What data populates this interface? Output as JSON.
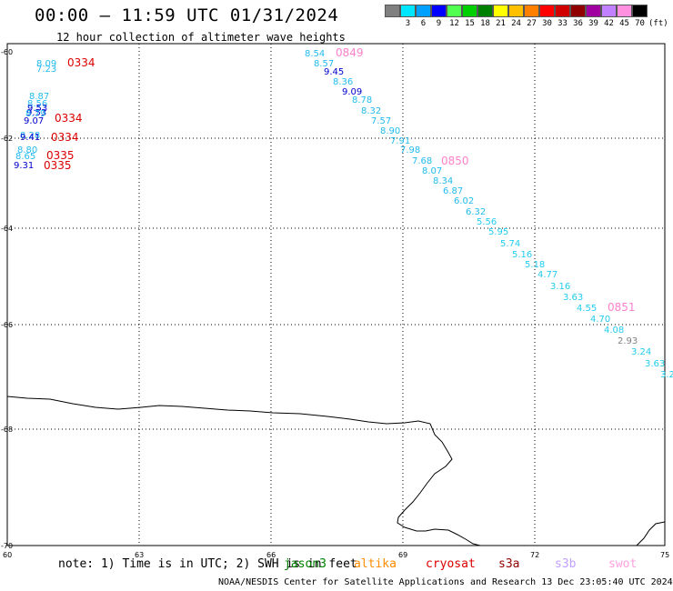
{
  "header": {
    "title": "00:00 – 11:59 UTC 01/31/2024",
    "subtitle": "12 hour collection of altimeter wave heights"
  },
  "legend": {
    "colors": [
      "#808080",
      "#00e6ff",
      "#00a0ff",
      "#0000ff",
      "#50ff50",
      "#00d000",
      "#008000",
      "#ffff00",
      "#ffc000",
      "#ff8000",
      "#ff0000",
      "#d00000",
      "#900000",
      "#a000a0",
      "#c080ff",
      "#ff90e0",
      "#000000"
    ],
    "labels": [
      "",
      "3",
      "6",
      "9",
      "12",
      "15",
      "18",
      "21",
      "24",
      "27",
      "30",
      "33",
      "36",
      "39",
      "42",
      "45",
      "70"
    ],
    "unit": "(ft)"
  },
  "axes": {
    "lat_labels": [
      "-60",
      "-62",
      "-64",
      "-66",
      "-68",
      "-70"
    ],
    "lon_labels": [
      "60",
      "63",
      "66",
      "69",
      "72",
      "75"
    ]
  },
  "observations": {
    "track1": [
      {
        "v": "8.54",
        "c": "#22bbee"
      },
      {
        "v": "8.57",
        "c": "#22bbee"
      },
      {
        "v": "9.45",
        "c": "#0000cc"
      },
      {
        "v": "8.36",
        "c": "#22bbee"
      },
      {
        "v": "9.09",
        "c": "#0000cc"
      },
      {
        "v": "8.78",
        "c": "#22bbee"
      },
      {
        "v": "8.32",
        "c": "#22bbee"
      },
      {
        "v": "7.57",
        "c": "#22bbee"
      },
      {
        "v": "8.90",
        "c": "#22bbee"
      },
      {
        "v": "7.91",
        "c": "#22bbee"
      },
      {
        "v": "7.98",
        "c": "#22bbee"
      },
      {
        "v": "7.68",
        "c": "#22bbee"
      },
      {
        "v": "8.07",
        "c": "#22bbee"
      },
      {
        "v": "8.34",
        "c": "#22bbee"
      },
      {
        "v": "6.87",
        "c": "#22bbee"
      },
      {
        "v": "6.02",
        "c": "#22bbee"
      },
      {
        "v": "6.32",
        "c": "#22bbee"
      },
      {
        "v": "5.56",
        "c": "#22ccee"
      },
      {
        "v": "5.95",
        "c": "#22ccee"
      },
      {
        "v": "5.74",
        "c": "#22ccee"
      },
      {
        "v": "5.16",
        "c": "#22ccee"
      },
      {
        "v": "5.18",
        "c": "#22ccee"
      },
      {
        "v": "4.77",
        "c": "#22ccee"
      },
      {
        "v": "3.16",
        "c": "#22ccee"
      },
      {
        "v": "3.63",
        "c": "#22ccee"
      },
      {
        "v": "4.55",
        "c": "#22ccee"
      },
      {
        "v": "4.70",
        "c": "#22ccee"
      },
      {
        "v": "4.08",
        "c": "#22ccee"
      },
      {
        "v": "2.93",
        "c": "#808080"
      },
      {
        "v": "3.24",
        "c": "#22ccee"
      },
      {
        "v": "3.63",
        "c": "#22ccee"
      },
      {
        "v": "3.2",
        "c": "#22ccee"
      }
    ],
    "track1_times": [
      {
        "t": "0849",
        "c": "#ff80cc"
      },
      {
        "t": "0850",
        "c": "#ff80cc"
      },
      {
        "t": "0851",
        "c": "#ff80cc"
      }
    ],
    "track2": [
      {
        "v": "8.09",
        "c": "#22bbee"
      },
      {
        "v": "7.23",
        "c": "#22bbee"
      },
      {
        "v": "8.87",
        "c": "#22bbee"
      },
      {
        "v": "8.56",
        "c": "#22bbee"
      },
      {
        "v": "9.53",
        "c": "#0000cc"
      },
      {
        "v": "9.53",
        "c": "#0000cc"
      },
      {
        "v": "8.79",
        "c": "#22bbee"
      },
      {
        "v": "9.07",
        "c": "#0000cc"
      },
      {
        "v": "8.28",
        "c": "#22bbee"
      },
      {
        "v": "9.41",
        "c": "#0000cc"
      },
      {
        "v": "8.80",
        "c": "#22bbee"
      },
      {
        "v": "8.65",
        "c": "#22bbee"
      },
      {
        "v": "9.31",
        "c": "#0000cc"
      }
    ],
    "track2_times": [
      {
        "t": "0334",
        "c": "#dd0000"
      },
      {
        "t": "0334",
        "c": "#dd0000"
      },
      {
        "t": "0334",
        "c": "#dd0000"
      },
      {
        "t": "0335",
        "c": "#dd0000"
      },
      {
        "t": "0335",
        "c": "#dd0000"
      }
    ]
  },
  "footer": {
    "note": "note: 1) Time is in UTC; 2) SWH is in feet",
    "satellites": [
      {
        "name": "jason3",
        "color": "#008000"
      },
      {
        "name": "altika",
        "color": "#ff8c00"
      },
      {
        "name": "cryosat",
        "color": "#dd0000"
      },
      {
        "name": "s3a",
        "color": "#900000"
      },
      {
        "name": "s3b",
        "color": "#c0a0ff"
      },
      {
        "name": "swot",
        "color": "#ffa0e0"
      }
    ],
    "credit": "NOAA/NESDIS Center for Satellite Applications and Research    13 Dec 23:05:40 UTC 2024"
  }
}
